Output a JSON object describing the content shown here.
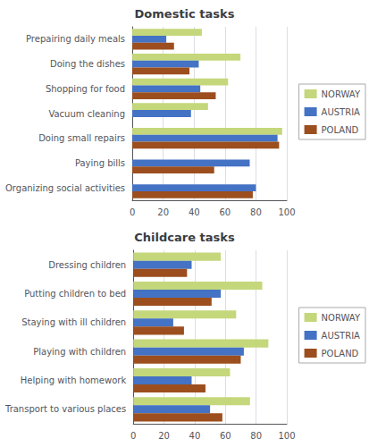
{
  "chart_data": [
    {
      "type": "bar",
      "orientation": "horizontal",
      "title": "Domestic tasks",
      "categories": [
        "Prepairing daily meals",
        "Doing the dishes",
        "Shopping for food",
        "Vacuum cleaning",
        "Doing small repairs",
        "Paying bills",
        "Organizing social activities"
      ],
      "series": [
        {
          "name": "NORWAY",
          "color": "#c4d77b",
          "values": [
            45,
            70,
            62,
            49,
            97,
            null,
            null
          ]
        },
        {
          "name": "AUSTRIA",
          "color": "#4472c4",
          "values": [
            22,
            43,
            44,
            38,
            94,
            76,
            80
          ]
        },
        {
          "name": "POLAND",
          "color": "#9c4e1e",
          "values": [
            27,
            37,
            54,
            null,
            95,
            53,
            78
          ]
        }
      ],
      "xlim": [
        0,
        100
      ],
      "xticks": [
        0,
        20,
        40,
        60,
        80,
        100
      ],
      "grid": true,
      "legend": "right"
    },
    {
      "type": "bar",
      "orientation": "horizontal",
      "title": "Childcare tasks",
      "categories": [
        "Dressing children",
        "Putting children to bed",
        "Staying with ill children",
        "Playing with children",
        "Helping with homework",
        "Transport to various places"
      ],
      "series": [
        {
          "name": "NORWAY",
          "color": "#c4d77b",
          "values": [
            57,
            84,
            67,
            88,
            63,
            76
          ]
        },
        {
          "name": "AUSTRIA",
          "color": "#4472c4",
          "values": [
            38,
            57,
            26,
            72,
            38,
            50
          ]
        },
        {
          "name": "POLAND",
          "color": "#9c4e1e",
          "values": [
            35,
            51,
            33,
            70,
            47,
            58
          ]
        }
      ],
      "xlim": [
        0,
        100
      ],
      "xticks": [
        0,
        20,
        40,
        60,
        80,
        100
      ],
      "grid": true,
      "legend": "right"
    }
  ]
}
